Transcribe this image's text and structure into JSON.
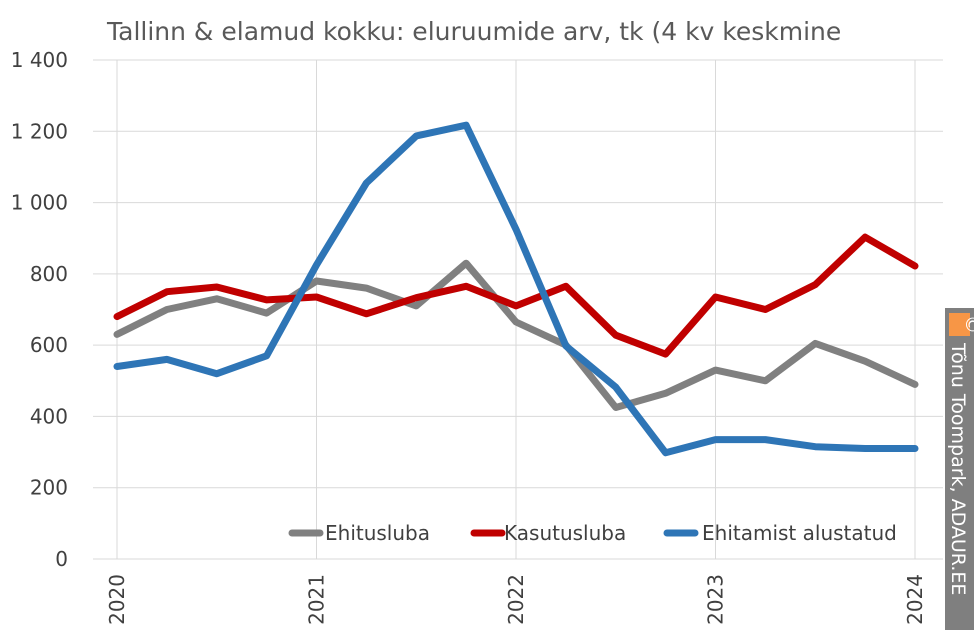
{
  "chart_data": {
    "type": "line",
    "title": "Tallinn & elamud kokku: eluruumide arv, tk (4 kv keskmine",
    "xlabel": "",
    "ylabel": "",
    "ylim": [
      0,
      1400
    ],
    "yticks": [
      0,
      200,
      400,
      600,
      800,
      1000,
      1200,
      1400
    ],
    "ytick_labels": [
      "0",
      "200",
      "400",
      "600",
      "800",
      "1 000",
      "1 200",
      "1 400"
    ],
    "xlim": [
      2020,
      2024.25
    ],
    "xticks": [
      2020,
      2021,
      2022,
      2023,
      2024
    ],
    "xtick_labels": [
      "2020",
      "2021",
      "2022",
      "2023",
      "2024"
    ],
    "grid": true,
    "legend": "bottom-inside",
    "x": [
      2020.0,
      2020.25,
      2020.5,
      2020.75,
      2021.0,
      2021.25,
      2021.5,
      2021.75,
      2022.0,
      2022.25,
      2022.5,
      2022.75,
      2023.0,
      2023.25,
      2023.5,
      2023.75,
      2024.0
    ],
    "series": [
      {
        "name": "Ehitusluba",
        "color": "#808080",
        "values": [
          630,
          700,
          730,
          690,
          780,
          760,
          710,
          830,
          665,
          600,
          425,
          465,
          530,
          500,
          605,
          555,
          490
        ]
      },
      {
        "name": "Kasutusluba",
        "color": "#c00000",
        "values": [
          680,
          750,
          763,
          727,
          735,
          688,
          733,
          765,
          710,
          765,
          628,
          575,
          735,
          700,
          770,
          903,
          822
        ]
      },
      {
        "name": "Ehitamist alustatud",
        "color": "#2e75b6",
        "values": [
          540,
          560,
          520,
          570,
          825,
          1055,
          1187,
          1217,
          925,
          598,
          482,
          298,
          335,
          335,
          315,
          310,
          310
        ]
      }
    ]
  },
  "credit": {
    "symbol": "©",
    "text": "Tõnu Toompark, ADAUR.EE",
    "color": "#f79646",
    "bg": "#7f7f7f"
  }
}
